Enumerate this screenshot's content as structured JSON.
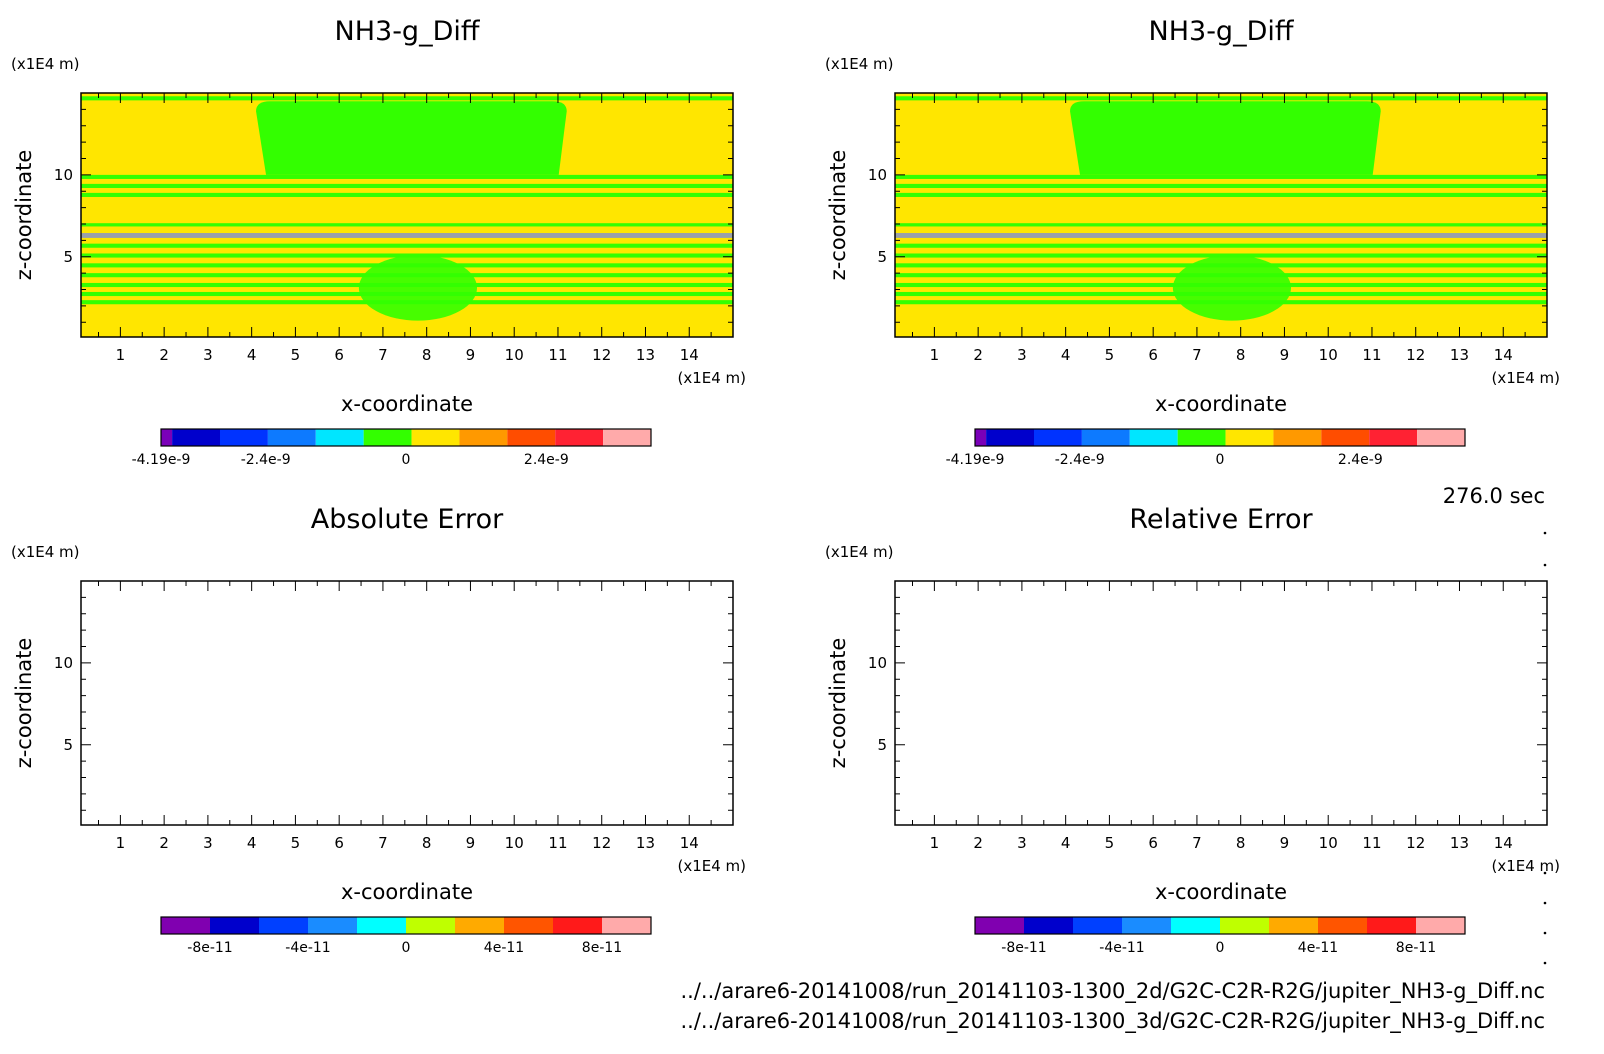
{
  "time_label": "276.0 sec",
  "file_paths": [
    "../../arare6-20141008/run_20141103-1300_2d/G2C-C2R-R2G/jupiter_NH3-g_Diff.nc",
    "../../arare6-20141008/run_20141103-1300_3d/G2C-C2R-R2G/jupiter_NH3-g_Diff.nc"
  ],
  "chart_data": [
    {
      "type": "heatmap",
      "title": "NH3-g_Diff",
      "xlabel": "x-coordinate",
      "ylabel": "z-coordinate",
      "x_unit": "(x1E4 m)",
      "y_unit": "(x1E4 m)",
      "xlim": [
        0.1,
        15.0
      ],
      "ylim": [
        0.1,
        15.0
      ],
      "x_ticks": [
        1,
        2,
        3,
        4,
        5,
        6,
        7,
        8,
        9,
        10,
        11,
        12,
        13,
        14
      ],
      "y_ticks": [
        5,
        10
      ],
      "colorbar": {
        "colors": [
          "#7a00b8",
          "#0000cc",
          "#0033ff",
          "#0d7aff",
          "#00e6ff",
          "#33ff00",
          "#ffe600",
          "#ff9900",
          "#ff4d00",
          "#ff2233",
          "#ffaaaa"
        ],
        "tick_values": [
          -4.19e-09,
          -2.4e-09,
          0,
          2.4e-09
        ],
        "tick_labels": [
          "-4.19e-9",
          "-2.4e-9",
          "0",
          "2.4e-9"
        ],
        "range": [
          -4.19e-09,
          4.19e-09
        ]
      }
    },
    {
      "type": "heatmap",
      "title": "NH3-g_Diff",
      "xlabel": "x-coordinate",
      "ylabel": "z-coordinate",
      "x_unit": "(x1E4 m)",
      "y_unit": "(x1E4 m)",
      "xlim": [
        0.1,
        15.0
      ],
      "ylim": [
        0.1,
        15.0
      ],
      "x_ticks": [
        1,
        2,
        3,
        4,
        5,
        6,
        7,
        8,
        9,
        10,
        11,
        12,
        13,
        14
      ],
      "y_ticks": [
        5,
        10
      ],
      "colorbar": {
        "colors": [
          "#7a00b8",
          "#0000cc",
          "#0033ff",
          "#0d7aff",
          "#00e6ff",
          "#33ff00",
          "#ffe600",
          "#ff9900",
          "#ff4d00",
          "#ff2233",
          "#ffaaaa"
        ],
        "tick_values": [
          -4.19e-09,
          -2.4e-09,
          0,
          2.4e-09
        ],
        "tick_labels": [
          "-4.19e-9",
          "-2.4e-9",
          "0",
          "2.4e-9"
        ],
        "range": [
          -4.19e-09,
          4.19e-09
        ]
      }
    },
    {
      "type": "heatmap",
      "title": "Absolute Error",
      "xlabel": "x-coordinate",
      "ylabel": "z-coordinate",
      "x_unit": "(x1E4 m)",
      "y_unit": "(x1E4 m)",
      "xlim": [
        0.1,
        15.0
      ],
      "ylim": [
        0.1,
        15.0
      ],
      "x_ticks": [
        1,
        2,
        3,
        4,
        5,
        6,
        7,
        8,
        9,
        10,
        11,
        12,
        13,
        14
      ],
      "y_ticks": [
        5,
        10
      ],
      "colorbar": {
        "colors": [
          "#8000b0",
          "#0000cc",
          "#0040ff",
          "#1a8cff",
          "#00ffff",
          "#bfff00",
          "#ffaa00",
          "#ff5500",
          "#ff1a1a",
          "#ffaaaa"
        ],
        "tick_values": [
          -8e-11,
          -4e-11,
          0,
          4e-11,
          8e-11
        ],
        "tick_labels": [
          "-8e-11",
          "-4e-11",
          "0",
          "4e-11",
          "8e-11"
        ],
        "range": [
          -1e-10,
          1e-10
        ]
      }
    },
    {
      "type": "heatmap",
      "title": "Relative Error",
      "xlabel": "x-coordinate",
      "ylabel": "z-coordinate",
      "x_unit": "(x1E4 m)",
      "y_unit": "(x1E4 m)",
      "xlim": [
        0.1,
        15.0
      ],
      "ylim": [
        0.1,
        15.0
      ],
      "x_ticks": [
        1,
        2,
        3,
        4,
        5,
        6,
        7,
        8,
        9,
        10,
        11,
        12,
        13,
        14
      ],
      "y_ticks": [
        5,
        10
      ],
      "colorbar": {
        "colors": [
          "#8000b0",
          "#0000cc",
          "#0040ff",
          "#1a8cff",
          "#00ffff",
          "#bfff00",
          "#ffaa00",
          "#ff5500",
          "#ff1a1a",
          "#ffaaaa"
        ],
        "tick_values": [
          -8e-11,
          -4e-11,
          0,
          4e-11,
          8e-11
        ],
        "tick_labels": [
          "-8e-11",
          "-4e-11",
          "0",
          "4e-11",
          "8e-11"
        ],
        "range": [
          -1e-10,
          1e-10
        ]
      }
    }
  ]
}
